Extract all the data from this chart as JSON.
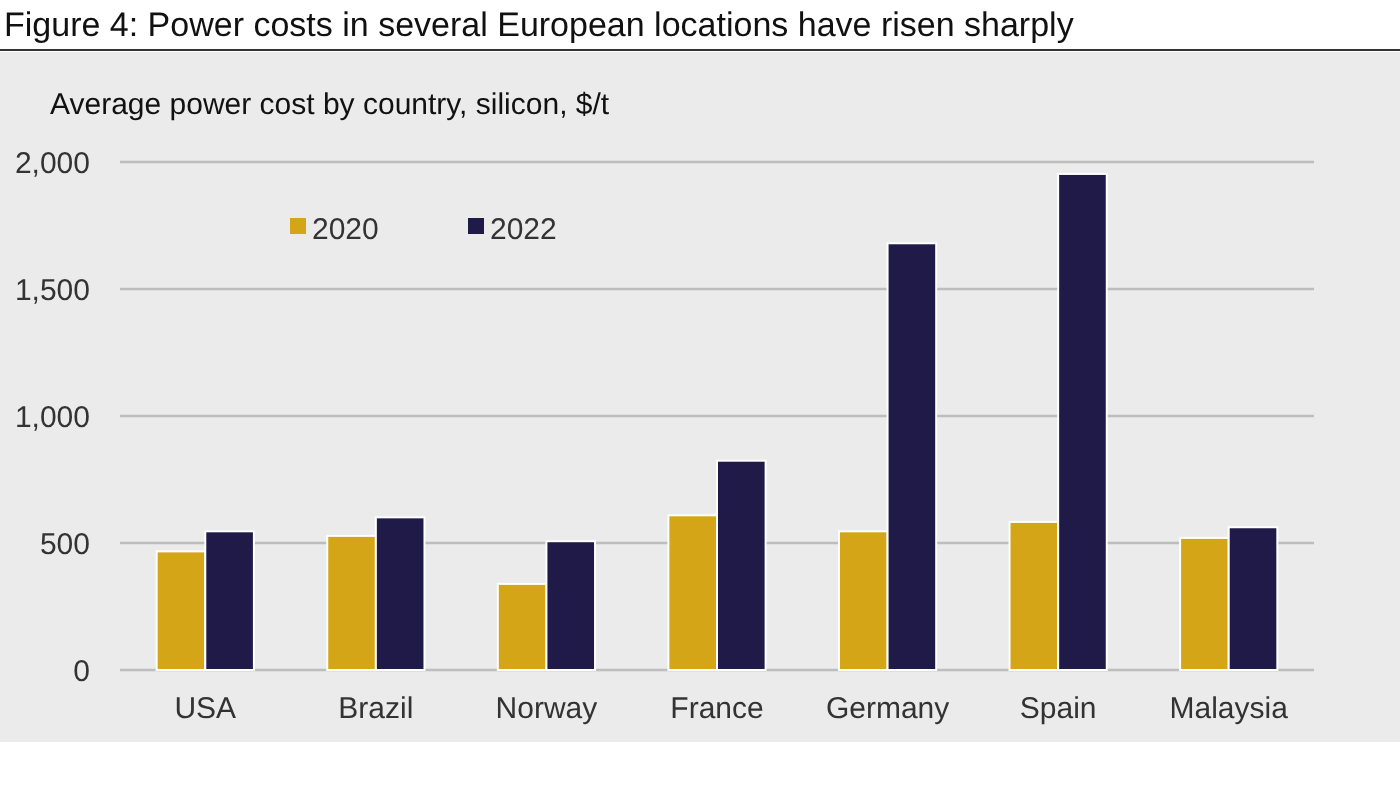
{
  "chart_data": {
    "type": "bar",
    "title": "Figure 4: Power costs in several European locations have risen sharply",
    "subtitle": "Average power cost by country, silicon, $/t",
    "categories": [
      "USA",
      "Brazil",
      "Norway",
      "France",
      "Germany",
      "Spain",
      "Malaysia"
    ],
    "series": [
      {
        "name": "2020",
        "color": "#d4a617",
        "values": [
          467,
          528,
          339,
          609,
          546,
          583,
          520
        ]
      },
      {
        "name": "2022",
        "color": "#201a48",
        "values": [
          546,
          601,
          507,
          824,
          1680,
          1953,
          562
        ]
      }
    ],
    "ylim": [
      0,
      2000
    ],
    "yticks": [
      0,
      {
        "value": 500,
        "label": "500"
      },
      {
        "value": 1000,
        "label": "1,000"
      },
      {
        "value": 1500,
        "label": "1,500"
      },
      {
        "value": 2000,
        "label": "2,000"
      }
    ],
    "grid": "y",
    "legend": "top left"
  }
}
